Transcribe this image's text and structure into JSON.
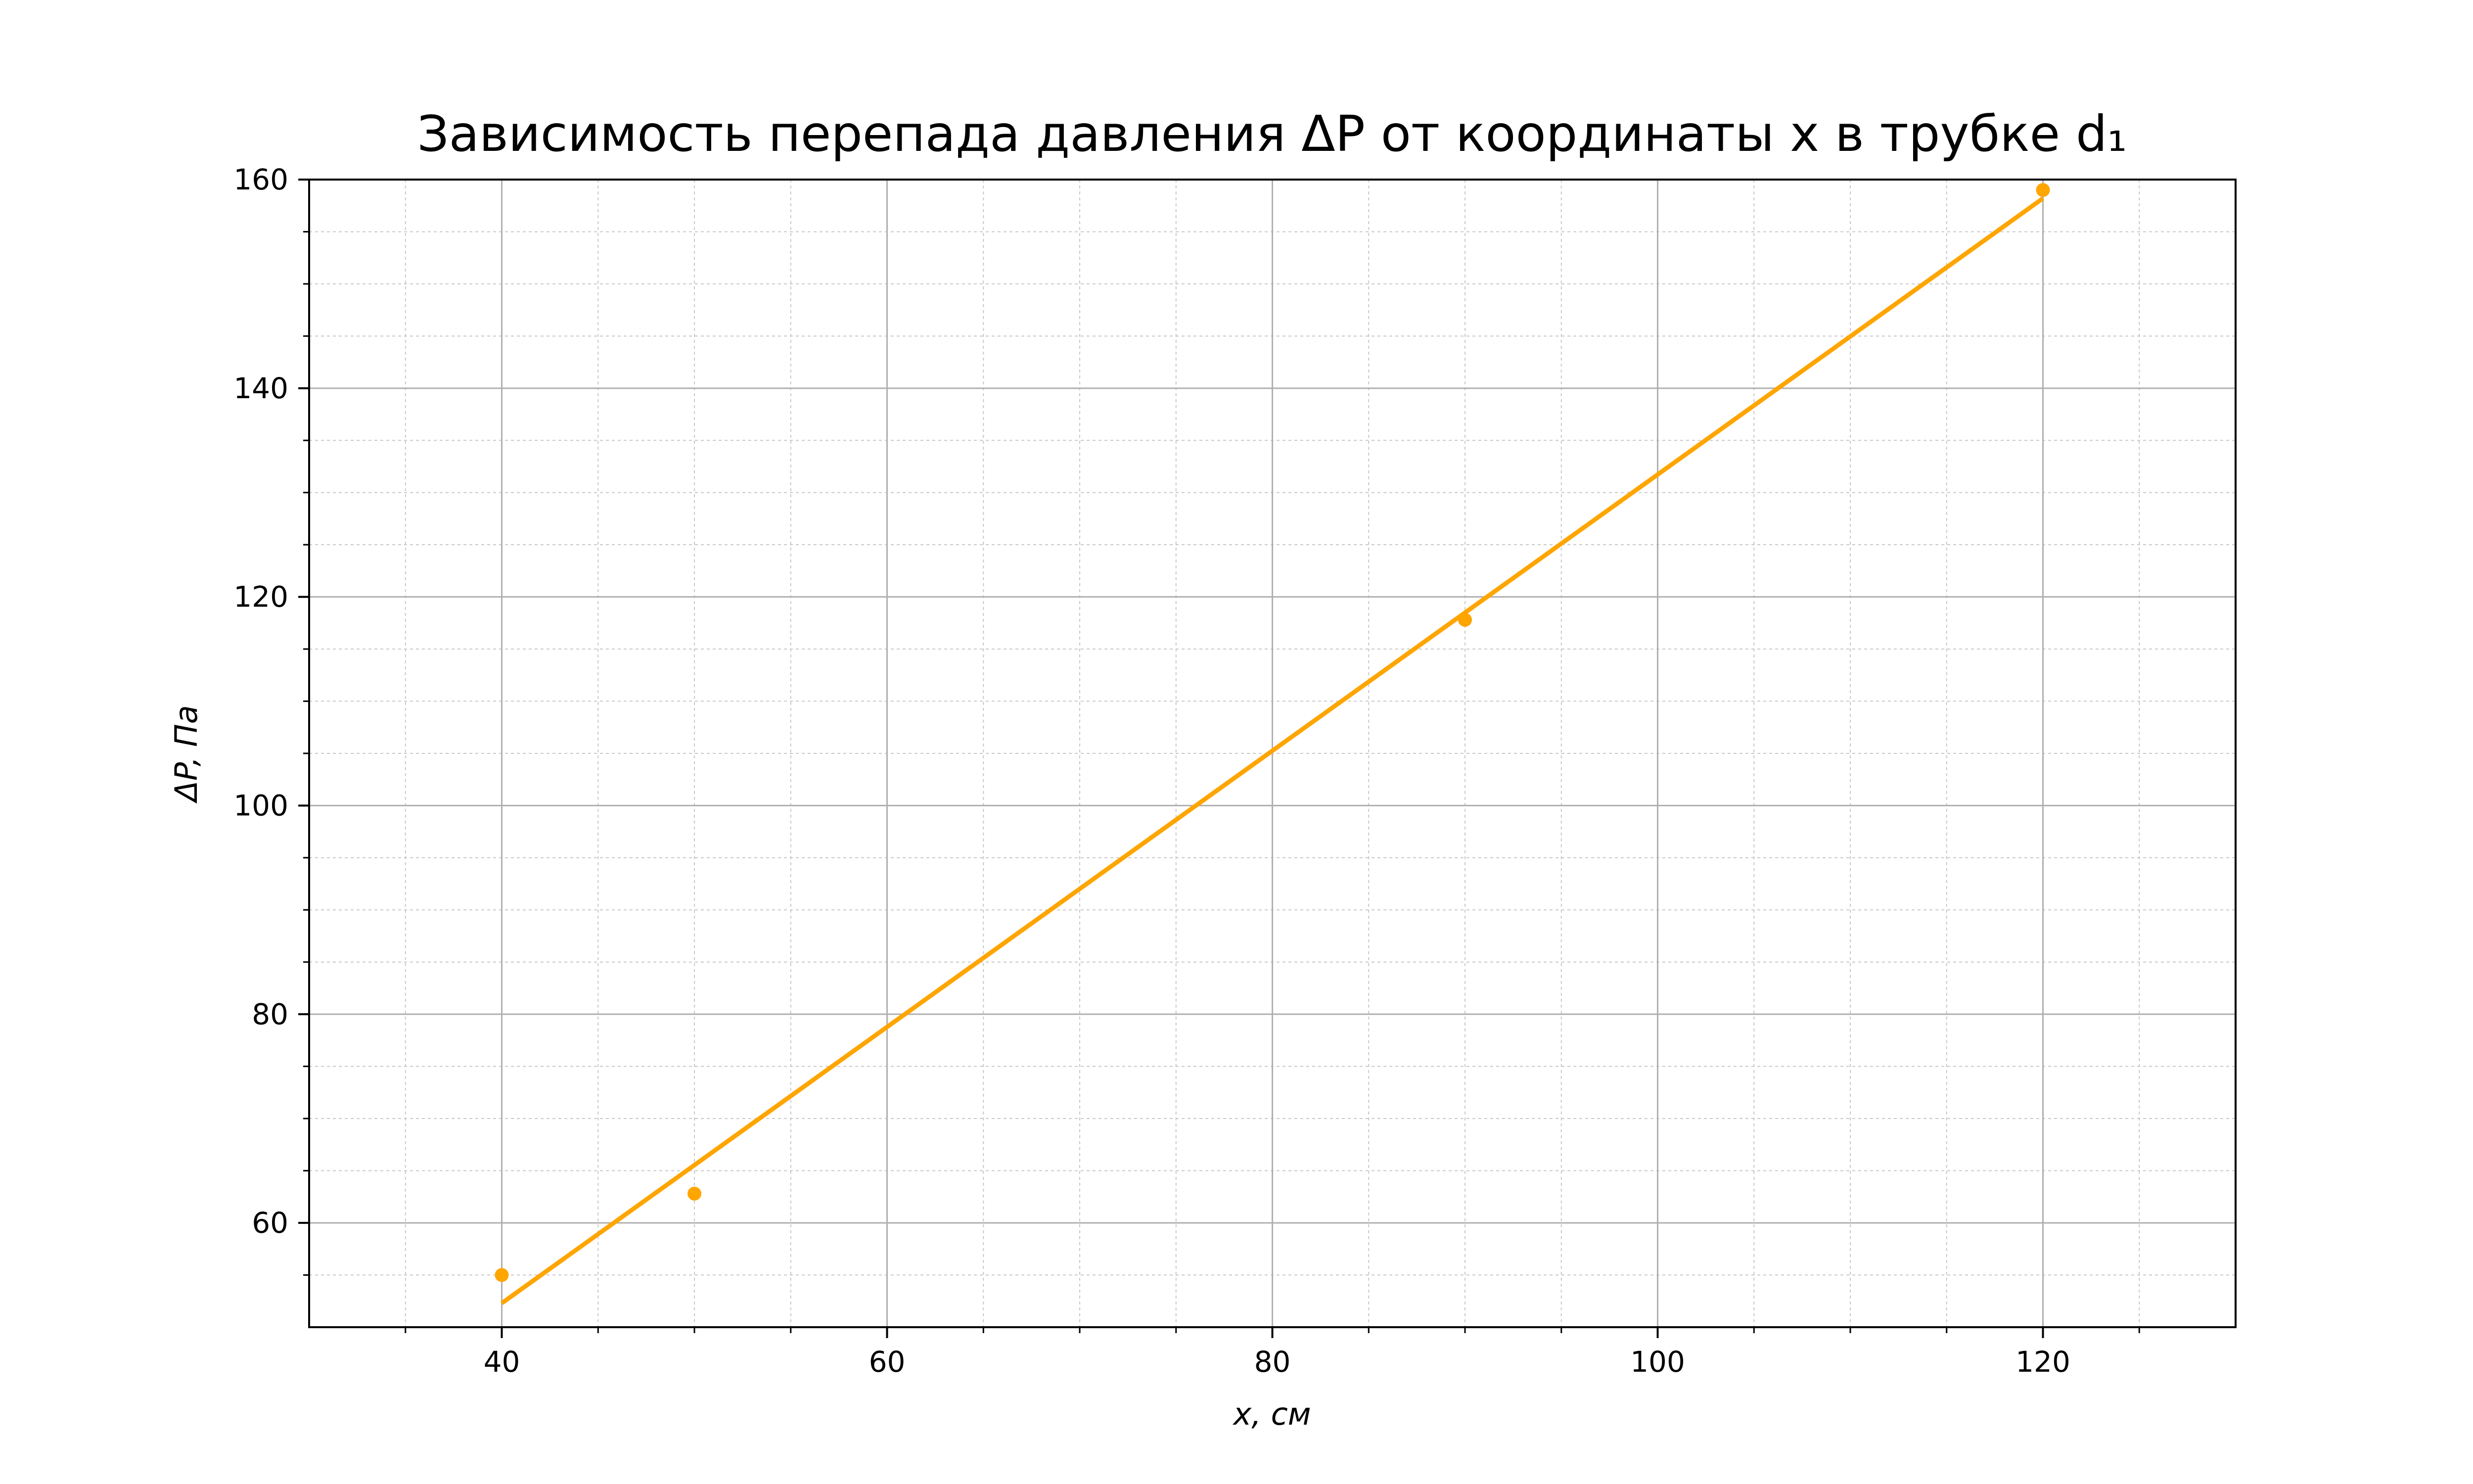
{
  "chart_data": {
    "type": "scatter",
    "title": "Зависимость перепада давления ΔP от координаты x в трубке d₁",
    "xlabel": "x, см",
    "ylabel": "ΔP, Па",
    "xlim": [
      30,
      130
    ],
    "ylim": [
      50,
      160
    ],
    "x_major_ticks": [
      40,
      60,
      80,
      100,
      120
    ],
    "x_minor_step": 5,
    "y_major_ticks": [
      60,
      80,
      100,
      120,
      140,
      160
    ],
    "y_minor_step": 5,
    "grid": true,
    "color": "#ffa500",
    "series": [
      {
        "kind": "points",
        "x": [
          40,
          50,
          90,
          120
        ],
        "y": [
          55,
          62.8,
          117.8,
          159
        ]
      },
      {
        "kind": "fit-line",
        "x": [
          40,
          120
        ],
        "y": [
          52.3,
          158.2
        ]
      }
    ]
  }
}
